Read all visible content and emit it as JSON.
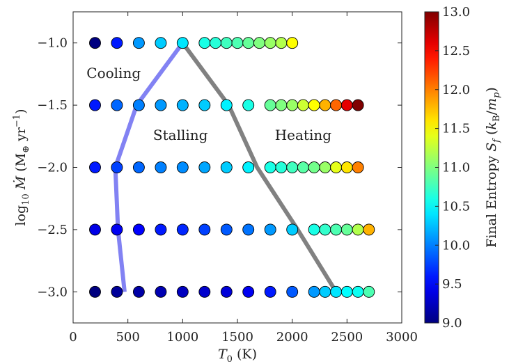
{
  "chart_data": {
    "type": "scatter",
    "xlabel": {
      "base": "T",
      "sub": "0",
      "unit": " (K)"
    },
    "ylabel": {
      "prefix": "log",
      "sub": "10",
      "var": "Ṁ",
      "unit_open": " (M",
      "unit_sub": "⊕",
      "unit_mid": " yr",
      "unit_sup": "−1",
      "unit_close": ")"
    },
    "xlim": [
      0,
      3000
    ],
    "ylim": [
      -3.25,
      -0.75
    ],
    "xticks": [
      0,
      500,
      1000,
      1500,
      2000,
      2500,
      3000
    ],
    "yticks": [
      -1.0,
      -1.5,
      -2.0,
      -2.5,
      -3.0
    ],
    "xtick_labels": [
      "0",
      "500",
      "1000",
      "1500",
      "2000",
      "2500",
      "3000"
    ],
    "ytick_labels": [
      "−1.0",
      "−1.5",
      "−2.0",
      "−2.5",
      "−3.0"
    ],
    "colorbar": {
      "label": "Final Entropy S",
      "label_sub": "f",
      "label_unit": "(k",
      "label_unit_sub": "B",
      "label_unit_mid": "/m",
      "label_unit_sub2": "p",
      "label_unit_close": ")",
      "min": 9.0,
      "max": 13.0,
      "ticks": [
        9.0,
        9.5,
        10.0,
        10.5,
        11.0,
        11.5,
        12.0,
        12.5,
        13.0
      ],
      "tick_labels": [
        "9.0",
        "9.5",
        "10.0",
        "10.5",
        "11.0",
        "11.5",
        "12.0",
        "12.5",
        "13.0"
      ],
      "colormap": "jet"
    },
    "region_labels": [
      {
        "text": "Cooling",
        "x": 370,
        "y": -1.28
      },
      {
        "text": "Stalling",
        "x": 980,
        "y": -1.78
      },
      {
        "text": "Heating",
        "x": 2100,
        "y": -1.78
      }
    ],
    "boundary_lines": [
      {
        "name": "cooling-stalling",
        "color": "#7b7bf2",
        "points": [
          [
            470,
            -3.0
          ],
          [
            410,
            -2.5
          ],
          [
            385,
            -2.0
          ],
          [
            580,
            -1.5
          ],
          [
            1000,
            -1.0
          ]
        ]
      },
      {
        "name": "stalling-heating",
        "color": "#7a7a7a",
        "points": [
          [
            1000,
            -1.0
          ],
          [
            1420,
            -1.5
          ],
          [
            1680,
            -2.0
          ],
          [
            2050,
            -2.5
          ],
          [
            2400,
            -3.0
          ]
        ]
      }
    ],
    "series": [
      {
        "y": -1.0,
        "x": [
          200,
          400,
          600,
          800,
          1000,
          1200,
          1300,
          1400,
          1500,
          1600,
          1700,
          1800,
          1900,
          2000
        ],
        "s": [
          9.0,
          9.6,
          10.1,
          10.3,
          10.4,
          10.6,
          10.65,
          10.75,
          10.8,
          10.9,
          11.0,
          11.1,
          11.2,
          11.5
        ]
      },
      {
        "y": -1.5,
        "x": [
          200,
          400,
          600,
          800,
          1000,
          1200,
          1400,
          1600,
          1800,
          1900,
          2000,
          2100,
          2200,
          2300,
          2400,
          2500,
          2600
        ],
        "s": [
          9.6,
          9.9,
          10.0,
          10.1,
          10.2,
          10.3,
          10.45,
          10.6,
          10.9,
          11.0,
          11.1,
          11.3,
          11.5,
          11.8,
          12.1,
          12.6,
          13.0
        ]
      },
      {
        "y": -2.0,
        "x": [
          200,
          400,
          600,
          800,
          1000,
          1200,
          1400,
          1600,
          1800,
          1900,
          2000,
          2100,
          2200,
          2300,
          2400,
          2500,
          2600
        ],
        "s": [
          9.6,
          9.75,
          9.9,
          10.0,
          10.05,
          10.15,
          10.3,
          10.45,
          10.6,
          10.65,
          10.75,
          10.85,
          10.95,
          11.1,
          11.4,
          11.6,
          12.0
        ]
      },
      {
        "y": -2.5,
        "x": [
          200,
          400,
          600,
          800,
          1000,
          1200,
          1400,
          1600,
          1800,
          2000,
          2200,
          2300,
          2400,
          2500,
          2600,
          2700
        ],
        "s": [
          9.4,
          9.45,
          9.5,
          9.6,
          9.65,
          9.75,
          9.85,
          9.95,
          10.1,
          10.3,
          10.6,
          10.7,
          10.8,
          10.9,
          11.2,
          11.8
        ]
      },
      {
        "y": -3.0,
        "x": [
          200,
          400,
          600,
          800,
          1000,
          1200,
          1400,
          1600,
          1800,
          2000,
          2200,
          2300,
          2400,
          2500,
          2600,
          2700
        ],
        "s": [
          9.0,
          9.1,
          9.15,
          9.2,
          9.25,
          9.3,
          9.35,
          9.45,
          9.6,
          9.85,
          10.1,
          10.3,
          10.4,
          10.5,
          10.55,
          10.8
        ]
      }
    ]
  }
}
